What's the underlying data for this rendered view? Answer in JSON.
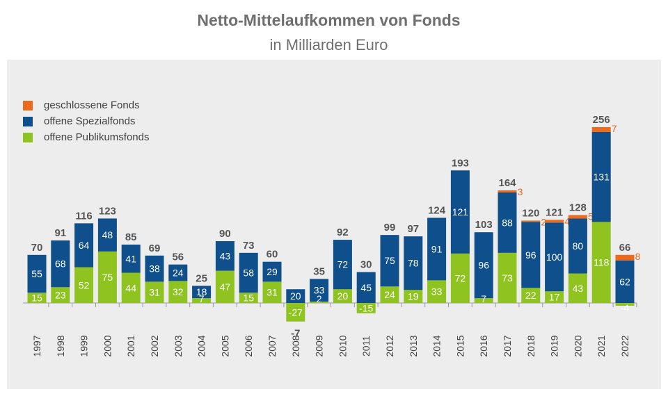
{
  "title": "Netto-Mittelaufkommen von Fonds",
  "subtitle": "in Milliarden Euro",
  "colors": {
    "geschlossene": "#ec6a1b",
    "spezial": "#0e4f8c",
    "publikum": "#8fc31f"
  },
  "chart_data": {
    "type": "bar",
    "stacked": true,
    "title": "Netto-Mittelaufkommen von Fonds",
    "subtitle": "in Milliarden Euro",
    "legend_position": "top-left",
    "categories": [
      "1997",
      "1998",
      "1999",
      "2000",
      "2001",
      "2002",
      "2003",
      "2004",
      "2005",
      "2006",
      "2007",
      "2008",
      "2009",
      "2010",
      "2011",
      "2012",
      "2013",
      "2014",
      "2015",
      "2016",
      "2017",
      "2018",
      "2019",
      "2020",
      "2021",
      "2022"
    ],
    "series": [
      {
        "name": "offene Publikumsfonds",
        "color": "#8fc31f",
        "values": [
          15,
          23,
          52,
          75,
          44,
          31,
          32,
          7,
          47,
          15,
          31,
          -27,
          2,
          20,
          -15,
          24,
          19,
          33,
          72,
          7,
          73,
          22,
          17,
          43,
          118,
          -4
        ]
      },
      {
        "name": "offene Spezialfonds",
        "color": "#0e4f8c",
        "values": [
          55,
          68,
          64,
          48,
          41,
          38,
          24,
          18,
          43,
          58,
          29,
          20,
          33,
          72,
          45,
          75,
          78,
          91,
          121,
          96,
          88,
          96,
          100,
          80,
          131,
          62
        ]
      },
      {
        "name": "geschlossene Fonds",
        "color": "#ec6a1b",
        "values": [
          0,
          0,
          0,
          0,
          0,
          0,
          0,
          0,
          0,
          0,
          0,
          0,
          0,
          0,
          0,
          0,
          0,
          0,
          0,
          0,
          3,
          2,
          4,
          5,
          7,
          8
        ]
      }
    ],
    "totals": [
      70,
      91,
      116,
      123,
      85,
      69,
      56,
      25,
      90,
      73,
      60,
      -7,
      35,
      92,
      30,
      99,
      97,
      124,
      193,
      103,
      164,
      120,
      121,
      128,
      256,
      66
    ]
  }
}
